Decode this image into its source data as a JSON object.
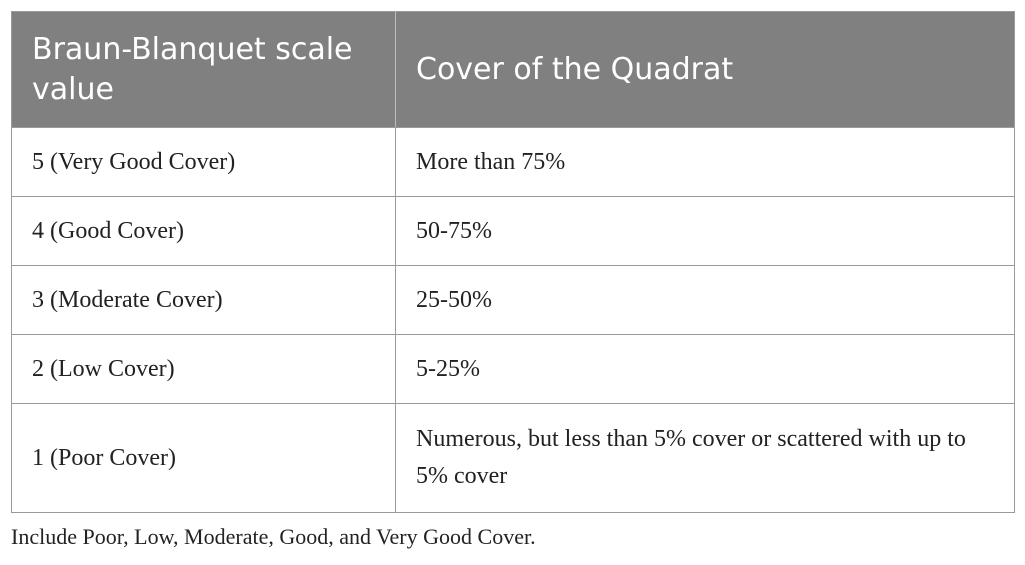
{
  "table": {
    "headers": [
      "Braun-Blanquet scale value",
      "Cover of the Quadrat"
    ],
    "rows": [
      {
        "scale": "5 (Very Good Cover)",
        "cover": "More than 75%"
      },
      {
        "scale": "4 (Good Cover)",
        "cover": "50-75%"
      },
      {
        "scale": "3 (Moderate Cover)",
        "cover": "25-50%"
      },
      {
        "scale": "2 (Low Cover)",
        "cover": "5-25%"
      },
      {
        "scale": "1 (Poor Cover)",
        "cover": "Numerous, but less than 5% cover or scattered with up to 5% cover"
      }
    ],
    "colors": {
      "header_bg": "#808080",
      "header_text": "#ffffff",
      "border": "#9a9a9a",
      "body_text": "#222222"
    }
  },
  "caption": "Include Poor, Low, Moderate, Good, and Very Good Cover."
}
